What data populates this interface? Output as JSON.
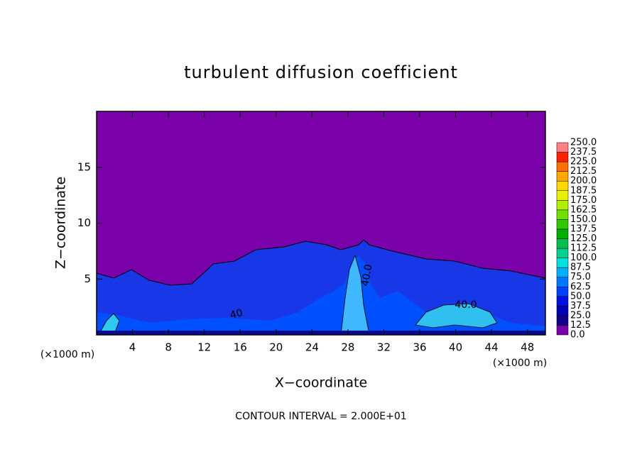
{
  "chart_data": {
    "type": "contour",
    "title": "turbulent diffusion coefficient",
    "x_label": "X−coordinate",
    "y_label": "Z−coordinate",
    "x_unit": "(×1000 m)",
    "footnote": "CONTOUR INTERVAL = 2.000E+01",
    "xlim": [
      0,
      50
    ],
    "ylim": [
      0,
      20
    ],
    "xticks": [
      4,
      8,
      12,
      16,
      20,
      24,
      28,
      32,
      36,
      40,
      44,
      48
    ],
    "yticks": [
      5,
      10,
      15
    ],
    "contour_labels": [
      "40.0",
      "40.0",
      "40"
    ],
    "colorbar": {
      "levels": [
        {
          "value": 0,
          "label": "0.0"
        },
        {
          "value": 12.5,
          "label": "12.5"
        },
        {
          "value": 25,
          "label": "25.0"
        },
        {
          "value": 37.5,
          "label": "37.5"
        },
        {
          "value": 50,
          "label": "50.0"
        },
        {
          "value": 62.5,
          "label": "62.5"
        },
        {
          "value": 75,
          "label": "75.0"
        },
        {
          "value": 87.5,
          "label": "87.5"
        },
        {
          "value": 100,
          "label": "100.0"
        },
        {
          "value": 112.5,
          "label": "112.5"
        },
        {
          "value": 125,
          "label": "125.0"
        },
        {
          "value": 137.5,
          "label": "137.5"
        },
        {
          "value": 150,
          "label": "150.0"
        },
        {
          "value": 162.5,
          "label": "162.5"
        },
        {
          "value": 175,
          "label": "175.0"
        },
        {
          "value": 187.5,
          "label": "187.5"
        },
        {
          "value": 200,
          "label": "200.0"
        },
        {
          "value": 212.5,
          "label": "212.5"
        },
        {
          "value": 225,
          "label": "225.0"
        },
        {
          "value": 237.5,
          "label": "237.5"
        },
        {
          "value": 250,
          "label": "250.0"
        }
      ],
      "colors": [
        "#7a00aa",
        "#12008c",
        "#0000b4",
        "#0010e0",
        "#0040ff",
        "#0078ff",
        "#00b0ff",
        "#00e0e0",
        "#00d090",
        "#00c050",
        "#00b000",
        "#30c800",
        "#70e000",
        "#b0f000",
        "#e8f000",
        "#ffd800",
        "#ffa800",
        "#ff7000",
        "#ff2000",
        "#ff8080"
      ]
    }
  }
}
